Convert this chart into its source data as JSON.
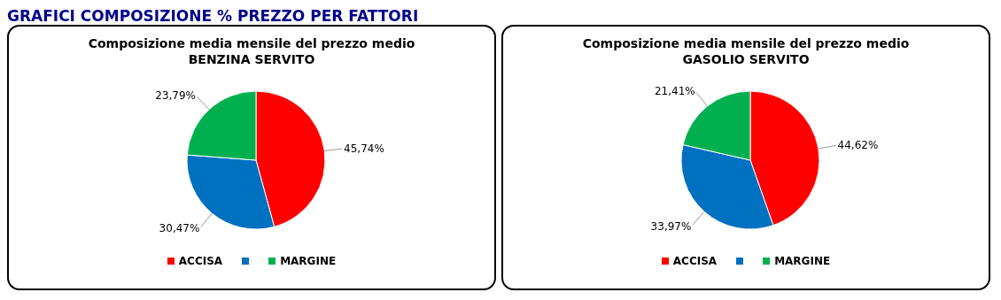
{
  "chart_data": [
    {
      "type": "pie",
      "title": "Composizione media mensile del prezzo medio\nBENZINA SERVITO",
      "annotations": [
        "GRAFICI COMPOSIZIONE % PREZZO PER FATTORI"
      ],
      "categories": [
        "ACCISA",
        null,
        "MARGINE"
      ],
      "values": [
        45.74,
        30.47,
        23.79
      ],
      "value_labels": [
        "45,74%",
        "30,47%",
        "23,79%"
      ],
      "colors": [
        "#ff0000",
        "#0070c0",
        "#00b050"
      ],
      "legend": "bottom"
    },
    {
      "type": "pie",
      "title": "Composizione media mensile del prezzo medio\nGASOLIO SERVITO",
      "categories": [
        "ACCISA",
        null,
        "MARGINE"
      ],
      "values": [
        44.62,
        33.97,
        21.41
      ],
      "value_labels": [
        "44,62%",
        "33,97%",
        "21,41%"
      ],
      "colors": [
        "#ff0000",
        "#0070c0",
        "#00b050"
      ],
      "legend": "bottom"
    }
  ]
}
